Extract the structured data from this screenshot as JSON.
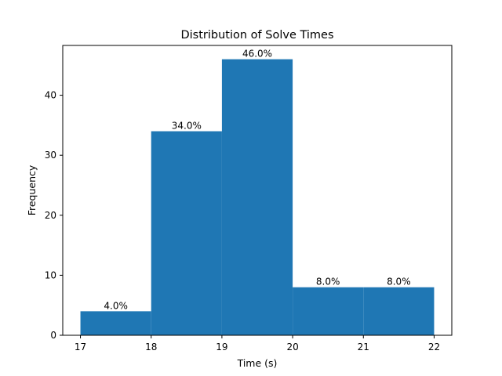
{
  "chart_data": {
    "type": "bar",
    "title": "Distribution of Solve Times",
    "xlabel": "Time (s)",
    "ylabel": "Frequency",
    "bins": [
      {
        "start": 17,
        "end": 18,
        "value": 4,
        "label": "4.0%"
      },
      {
        "start": 18,
        "end": 19,
        "value": 34,
        "label": "34.0%"
      },
      {
        "start": 19,
        "end": 20,
        "value": 46,
        "label": "46.0%"
      },
      {
        "start": 20,
        "end": 21,
        "value": 8,
        "label": "8.0%"
      },
      {
        "start": 21,
        "end": 22,
        "value": 8,
        "label": "8.0%"
      }
    ],
    "xlim": [
      16.75,
      22.25
    ],
    "ylim": [
      0,
      48.3
    ],
    "xticks": [
      17,
      18,
      19,
      20,
      21,
      22
    ],
    "yticks": [
      0,
      10,
      20,
      30,
      40
    ],
    "grid": false,
    "bar_color": "#1f77b4"
  }
}
